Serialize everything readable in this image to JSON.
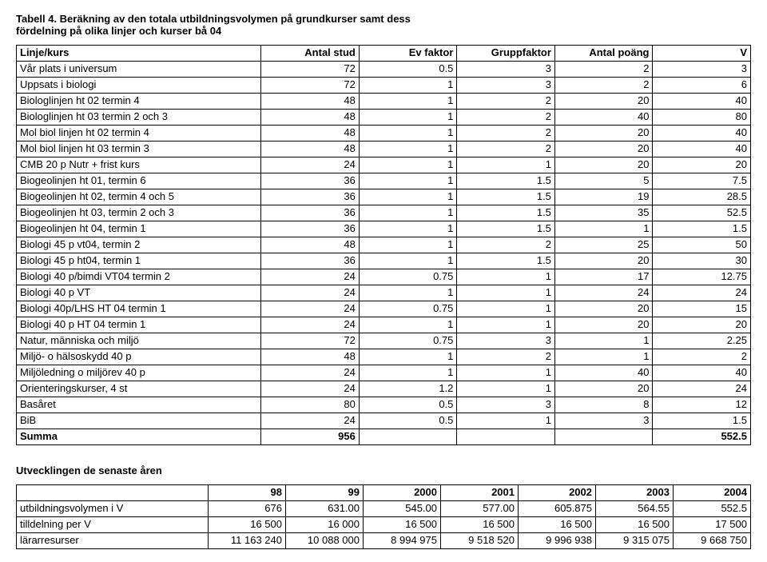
{
  "title": {
    "line1": "Tabell 4. Beräkning av den totala utbildningsvolymen på grundkurser samt dess",
    "line2": "fördelning på olika linjer och kurser bå 04"
  },
  "table1": {
    "columns": [
      "Linje/kurs",
      "Antal stud",
      "Ev faktor",
      "Gruppfaktor",
      "Antal poäng",
      "V"
    ],
    "rows": [
      [
        "Vår plats i universum",
        "72",
        "0.5",
        "3",
        "2",
        "3"
      ],
      [
        "Uppsats i biologi",
        "72",
        "1",
        "3",
        "2",
        "6"
      ],
      [
        "Biologlinjen ht 02 termin 4",
        "48",
        "1",
        "2",
        "20",
        "40"
      ],
      [
        "Biologlinjen ht 03 termin 2 och 3",
        "48",
        "1",
        "2",
        "40",
        "80"
      ],
      [
        "Mol biol linjen ht 02 termin 4",
        "48",
        "1",
        "2",
        "20",
        "40"
      ],
      [
        "Mol biol linjen ht 03 termin 3",
        "48",
        "1",
        "2",
        "20",
        "40"
      ],
      [
        "CMB 20 p Nutr + frist kurs",
        "24",
        "1",
        "1",
        "20",
        "20"
      ],
      [
        "Biogeolinjen ht 01, termin 6",
        "36",
        "1",
        "1.5",
        "5",
        "7.5"
      ],
      [
        "Biogeolinjen ht 02, termin 4 och 5",
        "36",
        "1",
        "1.5",
        "19",
        "28.5"
      ],
      [
        "Biogeolinjen ht 03, termin 2 och 3",
        "36",
        "1",
        "1.5",
        "35",
        "52.5"
      ],
      [
        "Biogeolinjen ht 04, termin 1",
        "36",
        "1",
        "1.5",
        "1",
        "1.5"
      ],
      [
        "Biologi 45 p vt04, termin 2",
        "48",
        "1",
        "2",
        "25",
        "50"
      ],
      [
        "Biologi 45 p ht04, termin 1",
        "36",
        "1",
        "1.5",
        "20",
        "30"
      ],
      [
        "Biologi 40 p/bimdi VT04 termin 2",
        "24",
        "0.75",
        "1",
        "17",
        "12.75"
      ],
      [
        "Biologi 40 p VT",
        "24",
        "1",
        "1",
        "24",
        "24"
      ],
      [
        "Biologi 40p/LHS HT 04 termin 1",
        "24",
        "0.75",
        "1",
        "20",
        "15"
      ],
      [
        "Biologi 40 p HT 04 termin 1",
        "24",
        "1",
        "1",
        "20",
        "20"
      ],
      [
        "Natur, människa och miljö",
        "72",
        "0.75",
        "3",
        "1",
        "2.25"
      ],
      [
        "Miljö- o hälsoskydd 40 p",
        "48",
        "1",
        "2",
        "1",
        "2"
      ],
      [
        "Miljöledning o miljörev 40 p",
        "24",
        "1",
        "1",
        "40",
        "40"
      ],
      [
        "Orienteringskurser, 4 st",
        "24",
        "1.2",
        "1",
        "20",
        "24"
      ],
      [
        "Basåret",
        "80",
        "0.5",
        "3",
        "8",
        "12"
      ],
      [
        "BiB",
        "24",
        "0.5",
        "1",
        "3",
        "1.5"
      ]
    ],
    "summary": {
      "label": "Summa",
      "stud": "956",
      "v": "552.5"
    }
  },
  "sub_heading": "Utvecklingen de senaste åren",
  "table2": {
    "years": [
      "98",
      "99",
      "2000",
      "2001",
      "2002",
      "2003",
      "2004"
    ],
    "rows": [
      [
        "utbildningsvolymen i V",
        "676",
        "631.00",
        "545.00",
        "577.00",
        "605.875",
        "564.55",
        "552.5"
      ],
      [
        "tilldelning per V",
        "16 500",
        "16 000",
        "16 500",
        "16 500",
        "16 500",
        "16 500",
        "17 500"
      ],
      [
        "lärarresurser",
        "11 163 240",
        "10 088 000",
        "8 994 975",
        "9 518 520",
        "9 996 938",
        "9 315 075",
        "9 668 750"
      ]
    ]
  }
}
